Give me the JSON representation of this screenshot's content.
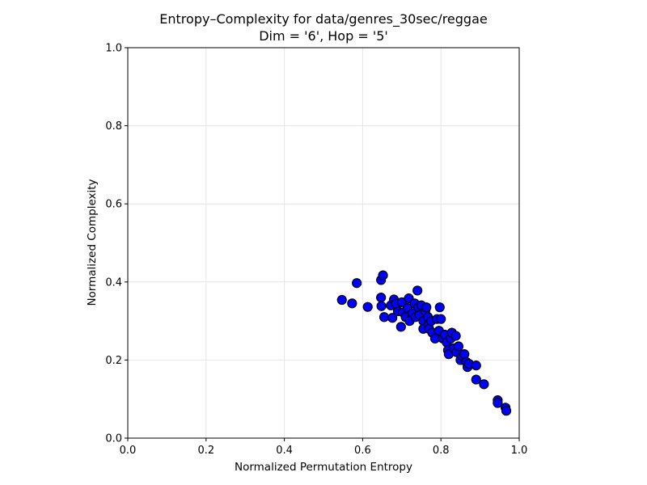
{
  "chart_data": {
    "type": "scatter",
    "title": "Entropy–Complexity for data/genres_30sec/reggae",
    "subtitle": "Dim = '6', Hop = '5'",
    "xlabel": "Normalized Permutation Entropy",
    "ylabel": "Normalized Complexity",
    "xlim": [
      0.0,
      1.0
    ],
    "ylim": [
      0.0,
      1.0
    ],
    "xticks": [
      "0.0",
      "0.2",
      "0.4",
      "0.6",
      "0.8",
      "1.0"
    ],
    "yticks": [
      "0.0",
      "0.2",
      "0.4",
      "0.6",
      "0.8",
      "1.0"
    ],
    "grid": true,
    "marker_color": "#0000ff",
    "marker_edge_color": "#000000",
    "points": [
      {
        "x": 0.547,
        "y": 0.354
      },
      {
        "x": 0.573,
        "y": 0.345
      },
      {
        "x": 0.585,
        "y": 0.397
      },
      {
        "x": 0.613,
        "y": 0.336
      },
      {
        "x": 0.647,
        "y": 0.405
      },
      {
        "x": 0.652,
        "y": 0.417
      },
      {
        "x": 0.647,
        "y": 0.36
      },
      {
        "x": 0.648,
        "y": 0.338
      },
      {
        "x": 0.655,
        "y": 0.31
      },
      {
        "x": 0.672,
        "y": 0.34
      },
      {
        "x": 0.68,
        "y": 0.355
      },
      {
        "x": 0.676,
        "y": 0.308
      },
      {
        "x": 0.69,
        "y": 0.325
      },
      {
        "x": 0.685,
        "y": 0.345
      },
      {
        "x": 0.698,
        "y": 0.285
      },
      {
        "x": 0.7,
        "y": 0.348
      },
      {
        "x": 0.703,
        "y": 0.322
      },
      {
        "x": 0.71,
        "y": 0.31
      },
      {
        "x": 0.715,
        "y": 0.333
      },
      {
        "x": 0.718,
        "y": 0.358
      },
      {
        "x": 0.72,
        "y": 0.3
      },
      {
        "x": 0.727,
        "y": 0.32
      },
      {
        "x": 0.733,
        "y": 0.345
      },
      {
        "x": 0.735,
        "y": 0.31
      },
      {
        "x": 0.74,
        "y": 0.378
      },
      {
        "x": 0.742,
        "y": 0.335
      },
      {
        "x": 0.745,
        "y": 0.315
      },
      {
        "x": 0.75,
        "y": 0.34
      },
      {
        "x": 0.755,
        "y": 0.3
      },
      {
        "x": 0.755,
        "y": 0.28
      },
      {
        "x": 0.76,
        "y": 0.325
      },
      {
        "x": 0.763,
        "y": 0.335
      },
      {
        "x": 0.767,
        "y": 0.31
      },
      {
        "x": 0.768,
        "y": 0.29
      },
      {
        "x": 0.77,
        "y": 0.28
      },
      {
        "x": 0.775,
        "y": 0.3
      },
      {
        "x": 0.778,
        "y": 0.27
      },
      {
        "x": 0.785,
        "y": 0.255
      },
      {
        "x": 0.79,
        "y": 0.305
      },
      {
        "x": 0.795,
        "y": 0.275
      },
      {
        "x": 0.797,
        "y": 0.335
      },
      {
        "x": 0.8,
        "y": 0.305
      },
      {
        "x": 0.805,
        "y": 0.255
      },
      {
        "x": 0.81,
        "y": 0.265
      },
      {
        "x": 0.815,
        "y": 0.245
      },
      {
        "x": 0.818,
        "y": 0.225
      },
      {
        "x": 0.82,
        "y": 0.215
      },
      {
        "x": 0.825,
        "y": 0.255
      },
      {
        "x": 0.828,
        "y": 0.27
      },
      {
        "x": 0.833,
        "y": 0.23
      },
      {
        "x": 0.838,
        "y": 0.262
      },
      {
        "x": 0.84,
        "y": 0.22
      },
      {
        "x": 0.845,
        "y": 0.235
      },
      {
        "x": 0.85,
        "y": 0.2
      },
      {
        "x": 0.855,
        "y": 0.21
      },
      {
        "x": 0.86,
        "y": 0.215
      },
      {
        "x": 0.865,
        "y": 0.195
      },
      {
        "x": 0.868,
        "y": 0.182
      },
      {
        "x": 0.872,
        "y": 0.19
      },
      {
        "x": 0.89,
        "y": 0.186
      },
      {
        "x": 0.89,
        "y": 0.15
      },
      {
        "x": 0.91,
        "y": 0.138
      },
      {
        "x": 0.945,
        "y": 0.097
      },
      {
        "x": 0.945,
        "y": 0.09
      },
      {
        "x": 0.965,
        "y": 0.078
      },
      {
        "x": 0.967,
        "y": 0.07
      }
    ]
  }
}
